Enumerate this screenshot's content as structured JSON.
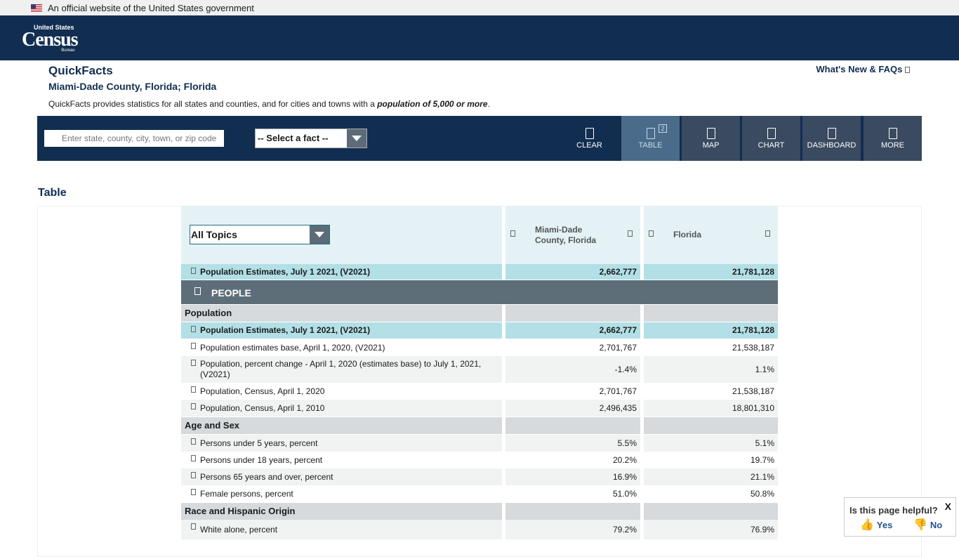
{
  "banner": {
    "text": "An official website of the United States government"
  },
  "logo": {
    "top": "United States",
    "main": "Census",
    "bottom": "Bureau"
  },
  "page": {
    "title": "QuickFacts",
    "subtitle": "Miami-Dade County, Florida; Florida",
    "desc_pre": "QuickFacts provides statistics for all states and counties, and for cities and towns with a ",
    "desc_em": "population of 5,000 or more",
    "desc_post": ".",
    "whats_new": "What's New & FAQs"
  },
  "toolbar": {
    "search_placeholder": "Enter state, county, city, town, or zip code",
    "fact_select": "-- Select a fact --",
    "buttons": [
      "CLEAR",
      "TABLE",
      "MAP",
      "CHART",
      "DASHBOARD",
      "MORE"
    ],
    "table_count": "2"
  },
  "section": {
    "title": "Table"
  },
  "table": {
    "topics_select": "All Topics",
    "col1": "Miami-Dade County, Florida",
    "col2": "Florida"
  },
  "rows": [
    {
      "label": "Population Estimates, July 1 2021, (V2021)",
      "v1": "2,662,777",
      "v2": "21,781,128"
    },
    {
      "people": "PEOPLE"
    },
    {
      "group": "Population"
    },
    {
      "label": "Population Estimates, July 1 2021, (V2021)",
      "v1": "2,662,777",
      "v2": "21,781,128"
    },
    {
      "label": "Population estimates base, April 1, 2020, (V2021)",
      "v1": "2,701,767",
      "v2": "21,538,187"
    },
    {
      "label": "Population, percent change - April 1, 2020 (estimates base) to July 1, 2021, (V2021)",
      "v1": "-1.4%",
      "v2": "1.1%"
    },
    {
      "label": "Population, Census, April 1, 2020",
      "v1": "2,701,767",
      "v2": "21,538,187"
    },
    {
      "label": "Population, Census, April 1, 2010",
      "v1": "2,496,435",
      "v2": "18,801,310"
    },
    {
      "group": "Age and Sex"
    },
    {
      "label": "Persons under 5 years, percent",
      "v1": "5.5%",
      "v2": "5.1%"
    },
    {
      "label": "Persons under 18 years, percent",
      "v1": "20.2%",
      "v2": "19.7%"
    },
    {
      "label": "Persons 65 years and over, percent",
      "v1": "16.9%",
      "v2": "21.1%"
    },
    {
      "label": "Female persons, percent",
      "v1": "51.0%",
      "v2": "50.8%"
    },
    {
      "group": "Race and Hispanic Origin"
    },
    {
      "label": "White alone, percent",
      "v1": "79.2%",
      "v2": "76.9%"
    }
  ],
  "feedback": {
    "question": "Is this page helpful?",
    "yes": "Yes",
    "no": "No",
    "close": "X"
  }
}
